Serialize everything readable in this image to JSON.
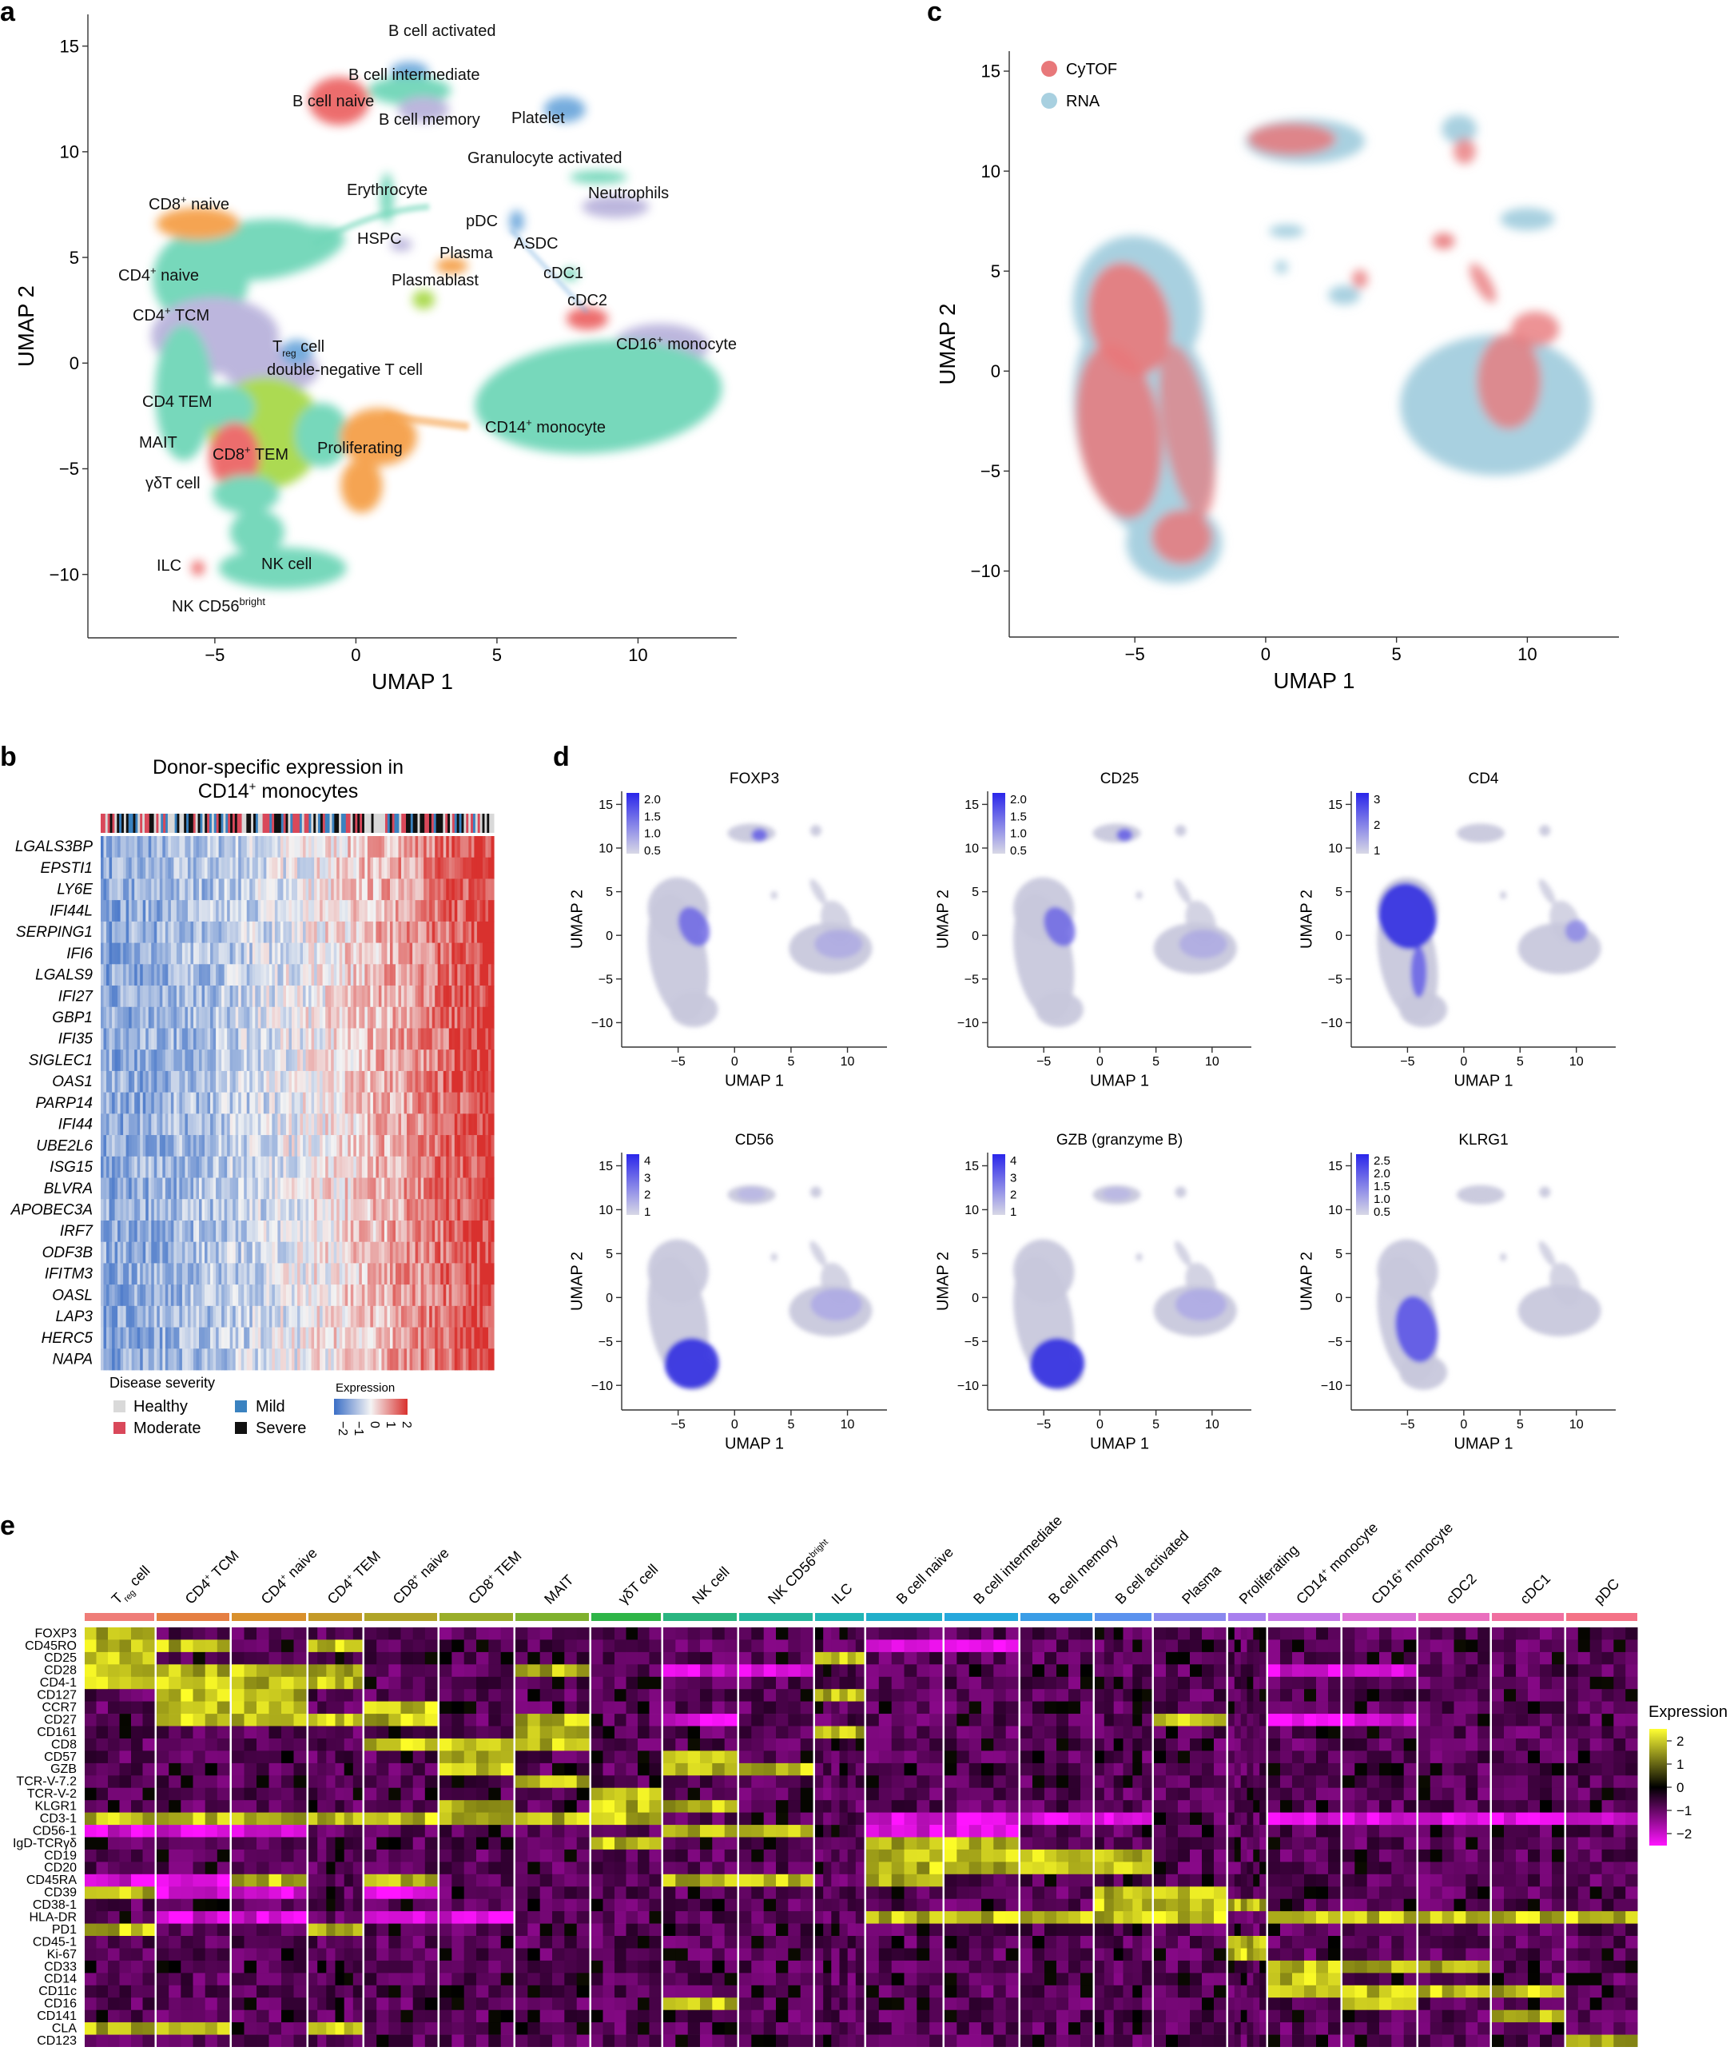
{
  "panel_letters": {
    "a": "a",
    "b": "b",
    "c": "c",
    "d": "d",
    "e": "e"
  },
  "colors": {
    "teal": "#6fd6b8",
    "lavender": "#b9b3dc",
    "orange": "#f5a04a",
    "red": "#ec6666",
    "green": "#a8d94a",
    "blue": "#6ea8dc",
    "cytof": "#e8787a",
    "rna": "#a8d0e0",
    "purple_low": "#d0d0e0",
    "purple_high": "#3a36e0"
  },
  "chart_data": [
    {
      "type": "scatter",
      "id": "a",
      "title": "",
      "xlabel": "UMAP 1",
      "ylabel": "UMAP 2",
      "xlim": [
        -9.5,
        13.5
      ],
      "ylim": [
        -13,
        16.5
      ],
      "xticks": [
        -5,
        0,
        5,
        10
      ],
      "yticks": [
        -10,
        -5,
        0,
        5,
        10,
        15
      ],
      "tick_labels_x": [
        "−5",
        "0",
        "5",
        "10"
      ],
      "tick_labels_y": [
        "−10",
        "−5",
        "0",
        "5",
        "10",
        "15"
      ],
      "clusters": [
        {
          "name": "B cell activated",
          "x": 2.0,
          "y": 13.8,
          "color": "#6ea8dc"
        },
        {
          "name": "B cell intermediate",
          "x": 1.5,
          "y": 12.6,
          "color": "#6fd6b8"
        },
        {
          "name": "B cell naive",
          "x": -0.5,
          "y": 12.2,
          "color": "#ec6666"
        },
        {
          "name": "B cell memory",
          "x": 2.5,
          "y": 11.8,
          "color": "#6fd6b8"
        },
        {
          "name": "Platelet",
          "x": 6.8,
          "y": 11.8,
          "color": "#6ea8dc"
        },
        {
          "name": "Granulocyte activated",
          "x": 7.5,
          "y": 8.7,
          "color": "#6fd6b8"
        },
        {
          "name": "Neutrophils",
          "x": 9.3,
          "y": 7.3,
          "color": "#b9b3dc"
        },
        {
          "name": "Erythrocyte",
          "x": 1.0,
          "y": 7.5,
          "color": "#6fd6b8"
        },
        {
          "name": "HSPC",
          "x": 1.2,
          "y": 5.6,
          "color": "#b9b3dc"
        },
        {
          "name": "pDC",
          "x": 5.4,
          "y": 6.9,
          "color": "#6ea8dc"
        },
        {
          "name": "ASDC",
          "x": 6.1,
          "y": 5.6,
          "color": "#6ea8dc"
        },
        {
          "name": "Plasma",
          "x": 3.8,
          "y": 4.8,
          "color": "#f5a04a"
        },
        {
          "name": "Plasmablast",
          "x": 2.4,
          "y": 3.3,
          "color": "#a8d94a"
        },
        {
          "name": "cDC1",
          "x": 7.4,
          "y": 4.0,
          "color": "#6fd6b8"
        },
        {
          "name": "cDC2",
          "x": 8.2,
          "y": 2.2,
          "color": "#ec6666"
        },
        {
          "name": "CD16+ monocyte",
          "x": 10.2,
          "y": 1.1,
          "color": "#b9b3dc"
        },
        {
          "name": "CD8+ naive",
          "x": -5.8,
          "y": 6.6,
          "color": "#f5a04a"
        },
        {
          "name": "CD4+ naive",
          "x": -5.8,
          "y": 3.6,
          "color": "#6fd6b8"
        },
        {
          "name": "CD4+ TCM",
          "x": -5.0,
          "y": 1.8,
          "color": "#b9b3dc"
        },
        {
          "name": "Treg cell",
          "x": -2.0,
          "y": 0.3,
          "color": "#6ea8dc"
        },
        {
          "name": "double-negative T cell",
          "x": -1.0,
          "y": -0.6,
          "color": "#b9b3dc"
        },
        {
          "name": "CD4 TEM",
          "x": -4.8,
          "y": -2.2,
          "color": "#6fd6b8"
        },
        {
          "name": "MAIT",
          "x": -4.5,
          "y": -4.6,
          "color": "#ec6666"
        },
        {
          "name": "CD8+ TEM",
          "x": -2.6,
          "y": -3.8,
          "color": "#a8d94a"
        },
        {
          "name": "Proliferating",
          "x": 1.4,
          "y": -3.4,
          "color": "#f5a04a"
        },
        {
          "name": "γδT cell",
          "x": -3.8,
          "y": -6.8,
          "color": "#6fd6b8"
        },
        {
          "name": "NK cell",
          "x": -2.6,
          "y": -9.8,
          "color": "#6fd6b8"
        },
        {
          "name": "ILC",
          "x": -5.6,
          "y": -9.8,
          "color": "#ec6666"
        },
        {
          "name": "NK CD56bright",
          "x": -4.6,
          "y": -11.3,
          "color": "#6fd6b8"
        },
        {
          "name": "CD14+ monocyte",
          "x": 8.5,
          "y": -2.0,
          "color": "#6fd6b8"
        }
      ],
      "labels": {
        "b_act": "B cell activated",
        "b_int": "B cell intermediate",
        "b_naive": "B cell naive",
        "b_mem": "B cell memory",
        "platelet": "Platelet",
        "gran": "Granulocyte activated",
        "neut": "Neutrophils",
        "eryth": "Erythrocyte",
        "hspc": "HSPC",
        "pdc": "pDC",
        "asdc": "ASDC",
        "plasma": "Plasma",
        "plasmablast": "Plasmablast",
        "cdc1": "cDC1",
        "cdc2": "cDC2",
        "cd16mono_base": "CD16",
        "cd16mono_sup": "+",
        "cd16mono_rest": " monocyte",
        "cd8naive_base": "CD8",
        "cd8naive_sup": "+",
        "cd8naive_rest": " naive",
        "cd4naive_base": "CD4",
        "cd4naive_sup": "+",
        "cd4naive_rest": " naive",
        "cd4tcm_base": "CD4",
        "cd4tcm_sup": "+",
        "cd4tcm_rest": " TCM",
        "treg_base": "T",
        "treg_sub": "reg",
        "treg_rest": " cell",
        "dnt": "double-negative T cell",
        "cd4tem": "CD4 TEM",
        "mait": "MAIT",
        "cd8tem_base": "CD8",
        "cd8tem_sup": "+",
        "cd8tem_rest": " TEM",
        "prolif": "Proliferating",
        "gdt": "γδT cell",
        "nk": "NK cell",
        "ilc": "ILC",
        "nkbright_base": "NK CD56",
        "nkbright_sup": "bright",
        "cd14mono_base": "CD14",
        "cd14mono_sup": "+",
        "cd14mono_rest": " monocyte"
      }
    },
    {
      "type": "scatter",
      "id": "c",
      "xlabel": "UMAP 1",
      "ylabel": "UMAP 2",
      "xlim": [
        -9.8,
        13.5
      ],
      "ylim": [
        -13.3,
        16
      ],
      "xticks": [
        -5,
        0,
        5,
        10
      ],
      "yticks": [
        -10,
        -5,
        0,
        5,
        10,
        15
      ],
      "tick_labels_x": [
        "−5",
        "0",
        "5",
        "10"
      ],
      "tick_labels_y": [
        "−10",
        "−5",
        "0",
        "5",
        "10",
        "15"
      ],
      "legend": [
        {
          "name": "CyTOF",
          "color": "#e8787a"
        },
        {
          "name": "RNA",
          "color": "#a8d0e0"
        }
      ],
      "legend_position": "top-left"
    },
    {
      "type": "heatmap",
      "id": "b",
      "title_line1": "Donor-specific expression in",
      "title_line2_base": "CD14",
      "title_line2_sup": "+",
      "title_line2_rest": " monocytes",
      "genes": [
        "LGALS3BP",
        "EPSTI1",
        "LY6E",
        "IFI44L",
        "SERPING1",
        "IFI6",
        "LGALS9",
        "IFI27",
        "GBP1",
        "IFI35",
        "SIGLEC1",
        "OAS1",
        "PARP14",
        "IFI44",
        "UBE2L6",
        "ISG15",
        "BLVRA",
        "APOBEC3A",
        "IRF7",
        "ODF3B",
        "IFITM3",
        "OASL",
        "LAP3",
        "HERC5",
        "NAPA"
      ],
      "legend_title": "Disease severity",
      "severity": [
        {
          "name": "Healthy",
          "color": "#d9d9d9"
        },
        {
          "name": "Mild",
          "color": "#3a82c0"
        },
        {
          "name": "Moderate",
          "color": "#d9485a"
        },
        {
          "name": "Severe",
          "color": "#111111"
        }
      ],
      "expression_title": "Expression",
      "expression_ticks": [
        "−2",
        "−1",
        "0",
        "1",
        "2"
      ],
      "value_range": [
        -2,
        2
      ]
    },
    {
      "type": "scatter",
      "id": "d",
      "xlabel": "UMAP 1",
      "ylabel": "UMAP 2",
      "xlim": [
        -10,
        13.5
      ],
      "ylim": [
        -12.8,
        16.5
      ],
      "xticks": [
        -5,
        0,
        5,
        10
      ],
      "yticks": [
        -10,
        -5,
        0,
        5,
        10,
        15
      ],
      "tick_labels_x": [
        "−5",
        "0",
        "5",
        "10"
      ],
      "tick_labels_y": [
        "−10",
        "−5",
        "0",
        "5",
        "10",
        "15"
      ],
      "panels": [
        {
          "title": "FOXP3",
          "scale": [
            "2.0",
            "1.5",
            "1.0",
            "0.5"
          ],
          "hot": "treg"
        },
        {
          "title": "CD25",
          "scale": [
            "2.0",
            "1.5",
            "1.0",
            "0.5"
          ],
          "hot": "treg"
        },
        {
          "title": "CD4",
          "scale": [
            "3",
            "2",
            "1"
          ],
          "hot": "cd4"
        },
        {
          "title": "CD56",
          "scale": [
            "4",
            "3",
            "2",
            "1"
          ],
          "hot": "nk"
        },
        {
          "title": "GZB (granzyme B)",
          "scale": [
            "4",
            "3",
            "2",
            "1"
          ],
          "hot": "nk"
        },
        {
          "title": "KLRG1",
          "scale": [
            "2.5",
            "2.0",
            "1.5",
            "1.0",
            "0.5"
          ],
          "hot": "klrg"
        }
      ]
    },
    {
      "type": "heatmap",
      "id": "e",
      "groups": [
        {
          "label": "Treg cell",
          "base": "T",
          "sub": "reg",
          "rest": " cell",
          "color": "#ef7d78"
        },
        {
          "label": "CD4+ TCM",
          "base": "CD4",
          "sup": "+",
          "rest": " TCM",
          "color": "#e57f42"
        },
        {
          "label": "CD4+ naive",
          "base": "CD4",
          "sup": "+",
          "rest": " naive",
          "color": "#d9902c"
        },
        {
          "label": "CD4+ TEM",
          "base": "CD4",
          "sup": "+",
          "rest": " TEM",
          "color": "#c49a28"
        },
        {
          "label": "CD8+ naive",
          "base": "CD8",
          "sup": "+",
          "rest": " naive",
          "color": "#b0a428"
        },
        {
          "label": "CD8+ TEM",
          "base": "CD8",
          "sup": "+",
          "rest": " TEM",
          "color": "#9aae2a"
        },
        {
          "label": "MAIT",
          "base": "MAIT",
          "color": "#7fb12e"
        },
        {
          "label": "γδT cell",
          "base": "γδT cell",
          "color": "#2fb548"
        },
        {
          "label": "NK cell",
          "base": "NK cell",
          "color": "#2ab580"
        },
        {
          "label": "NK CD56bright",
          "base": "NK CD56",
          "sup": "bright",
          "color": "#26b69e"
        },
        {
          "label": "ILC",
          "base": "ILC",
          "color": "#22b5b5"
        },
        {
          "label": "B cell naive",
          "base": "B cell naive",
          "color": "#22afca"
        },
        {
          "label": "B cell intermediate",
          "base": "B cell intermediate",
          "color": "#26a8dc"
        },
        {
          "label": "B cell memory",
          "base": "B cell memory",
          "color": "#3a9de6"
        },
        {
          "label": "B cell activated",
          "base": "B cell activated",
          "color": "#5b92ee"
        },
        {
          "label": "Plasma",
          "base": "Plasma",
          "color": "#8a88ee"
        },
        {
          "label": "Proliferating",
          "base": "Proliferating",
          "color": "#a87fee"
        },
        {
          "label": "CD14+ monocyte",
          "base": "CD14",
          "sup": "+",
          "rest": " monocyte",
          "color": "#c679e8"
        },
        {
          "label": "CD16+ monocyte",
          "base": "CD16",
          "sup": "+",
          "rest": " monocyte",
          "color": "#dc72d8"
        },
        {
          "label": "cDC2",
          "base": "cDC2",
          "color": "#ea6fbe"
        },
        {
          "label": "cDC1",
          "base": "cDC1",
          "color": "#f06fa0"
        },
        {
          "label": "pDC",
          "base": "pDC",
          "color": "#f47286"
        }
      ],
      "markers": [
        "FOXP3",
        "CD45RO",
        "CD25",
        "CD28",
        "CD4-1",
        "CD127",
        "CCR7",
        "CD27",
        "CD161",
        "CD8",
        "CD57",
        "GZB",
        "TCR-V-7.2",
        "TCR-V-2",
        "KLGR1",
        "CD3-1",
        "CD56-1",
        "IgD-TCRγδ",
        "CD19",
        "CD20",
        "CD45RA",
        "CD39",
        "CD38-1",
        "HLA-DR",
        "PD1",
        "CD45-1",
        "Ki-67",
        "CD33",
        "CD14",
        "CD11c",
        "CD16",
        "CD141",
        "CLA",
        "CD123"
      ],
      "expression_title": "Expression",
      "expression_ticks": [
        "2",
        "1",
        "0",
        "−1",
        "−2"
      ],
      "value_range": [
        -2,
        2
      ]
    }
  ]
}
